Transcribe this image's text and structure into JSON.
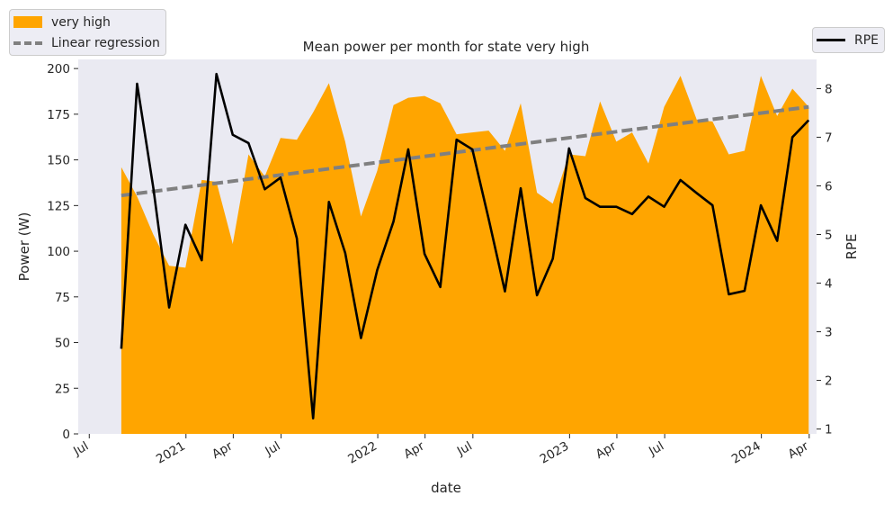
{
  "colors": {
    "area": "#FFA500",
    "regression": "#808080",
    "rpe": "#000000",
    "plot_background": "#EAEAF2"
  },
  "chart_data": {
    "type": "area",
    "title": "Mean power per month for state very high",
    "xlabel": "date",
    "ylabel": "Power (W)",
    "ylabel_right": "RPE",
    "ylim": [
      0,
      205
    ],
    "ylim_right": [
      0.9,
      8.6
    ],
    "xlim": [
      "2020-06-10",
      "2024-04-15"
    ],
    "yticks": [
      "0",
      "25",
      "50",
      "75",
      "100",
      "125",
      "150",
      "175",
      "200"
    ],
    "yticks_right": [
      "1",
      "2",
      "3",
      "4",
      "5",
      "6",
      "7",
      "8"
    ],
    "xticks": [
      {
        "date": "2020-07-01",
        "label": "Jul"
      },
      {
        "date": "2021-01-01",
        "label": "2021"
      },
      {
        "date": "2021-04-01",
        "label": "Apr"
      },
      {
        "date": "2021-07-01",
        "label": "Jul"
      },
      {
        "date": "2022-01-01",
        "label": "2022"
      },
      {
        "date": "2022-04-01",
        "label": "Apr"
      },
      {
        "date": "2022-07-01",
        "label": "Jul"
      },
      {
        "date": "2023-01-01",
        "label": "2023"
      },
      {
        "date": "2023-04-01",
        "label": "Apr"
      },
      {
        "date": "2023-07-01",
        "label": "Jul"
      },
      {
        "date": "2024-01-01",
        "label": "2024"
      },
      {
        "date": "2024-04-01",
        "label": "Apr"
      }
    ],
    "grid": false,
    "legend_left": [
      "very high",
      "Linear regression"
    ],
    "legend_right": [
      "RPE"
    ],
    "dates": [
      "2020-08-31",
      "2020-09-30",
      "2020-10-31",
      "2020-11-30",
      "2020-12-31",
      "2021-01-31",
      "2021-02-28",
      "2021-03-31",
      "2021-04-30",
      "2021-05-31",
      "2021-06-30",
      "2021-07-31",
      "2021-08-31",
      "2021-09-30",
      "2021-10-31",
      "2021-11-30",
      "2021-12-31",
      "2022-01-31",
      "2022-02-28",
      "2022-03-31",
      "2022-04-30",
      "2022-05-31",
      "2022-06-30",
      "2022-07-31",
      "2022-08-31",
      "2022-09-30",
      "2022-10-31",
      "2022-11-30",
      "2022-12-31",
      "2023-01-31",
      "2023-02-28",
      "2023-03-31",
      "2023-04-30",
      "2023-05-31",
      "2023-06-30",
      "2023-07-31",
      "2023-08-31",
      "2023-09-30",
      "2023-10-31",
      "2023-11-30",
      "2023-12-31",
      "2024-01-31",
      "2024-02-29",
      "2024-03-31"
    ],
    "series": [
      {
        "name": "very high",
        "type": "area",
        "values": [
          146,
          130,
          109,
          92,
          91,
          139,
          138,
          104,
          153,
          141,
          162,
          161,
          176,
          192,
          160,
          119,
          144,
          180,
          184,
          185,
          181,
          164,
          165,
          166,
          155,
          181,
          132,
          126,
          153,
          152,
          182,
          160,
          165,
          148,
          179,
          196,
          172,
          171,
          153,
          155,
          196,
          174,
          189,
          179
        ]
      },
      {
        "name": "RPE",
        "type": "line",
        "axis": "right",
        "values": [
          2.65,
          8.1,
          5.95,
          3.5,
          5.2,
          4.47,
          8.3,
          7.05,
          6.88,
          5.93,
          6.17,
          4.92,
          1.22,
          5.67,
          4.62,
          2.87,
          4.27,
          5.27,
          6.75,
          4.6,
          3.92,
          6.95,
          6.75,
          5.32,
          3.83,
          5.95,
          3.75,
          4.5,
          6.77,
          5.75,
          5.57,
          5.57,
          5.42,
          5.78,
          5.57,
          6.12,
          5.85,
          5.6,
          3.77,
          3.84,
          5.6,
          4.87,
          7.0,
          7.35
        ]
      },
      {
        "name": "Linear regression",
        "type": "line",
        "style": "dashed",
        "start": {
          "date": "2020-08-31",
          "value": 130.5
        },
        "end": {
          "date": "2024-03-31",
          "value": 179
        }
      }
    ]
  }
}
